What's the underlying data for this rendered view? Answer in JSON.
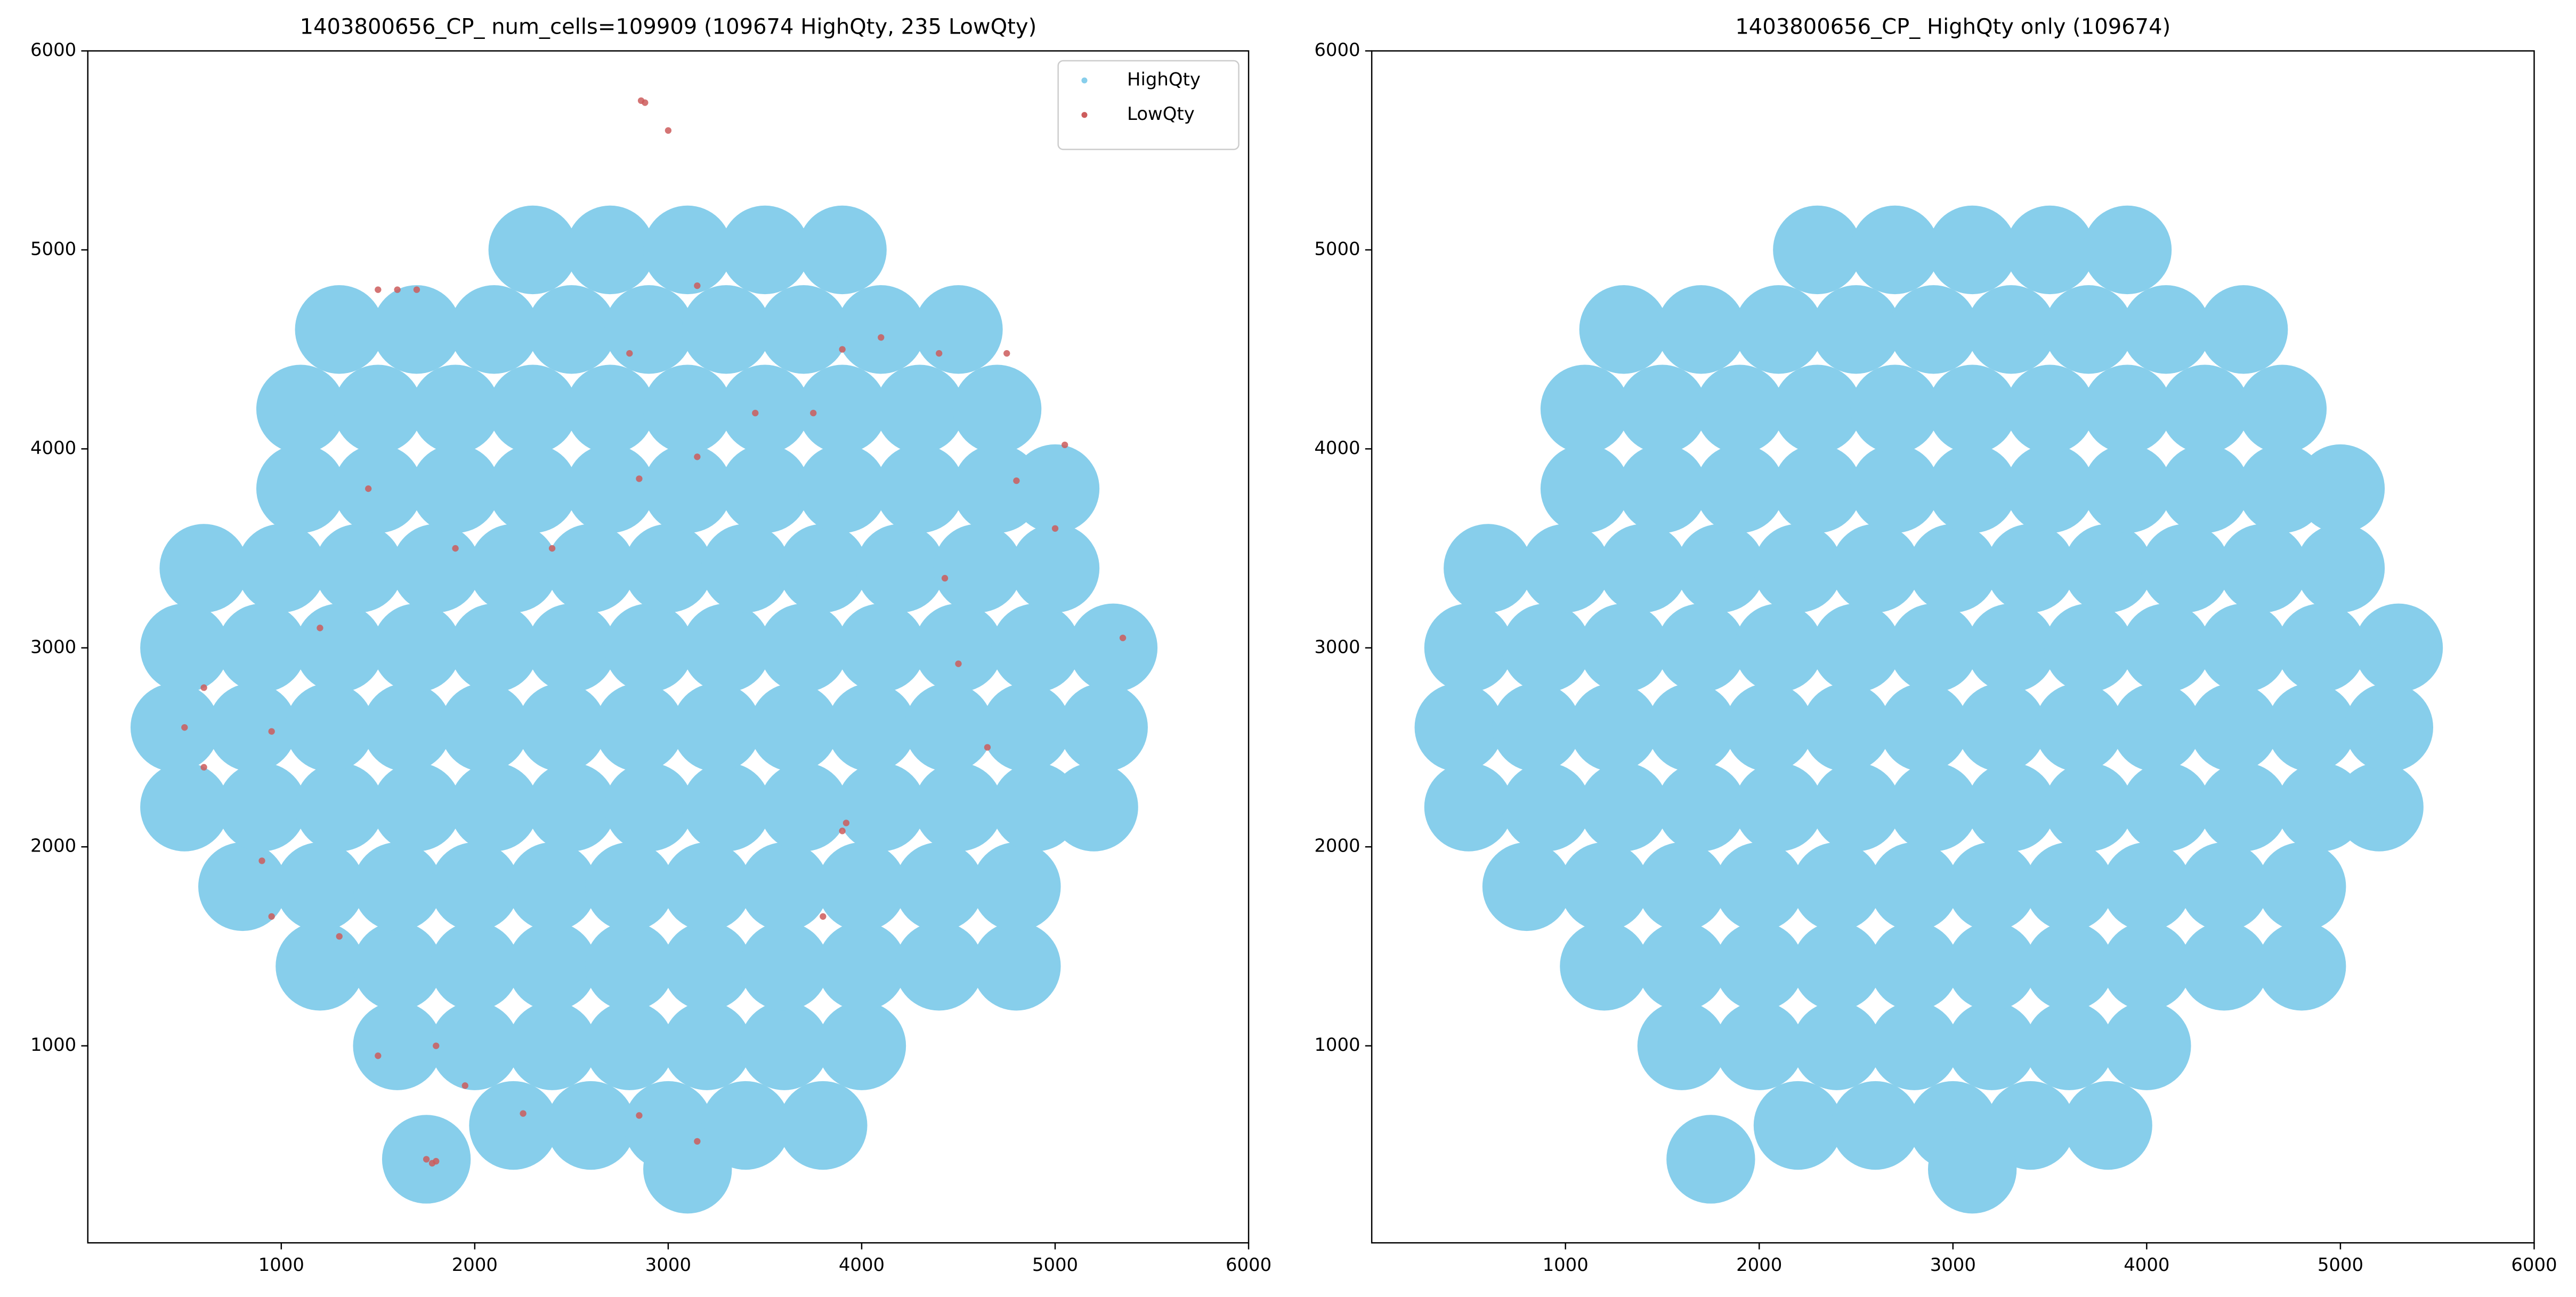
{
  "chart_data": [
    {
      "type": "scatter",
      "title": "1403800656_CP_ num_cells=109909 (109674 HighQty, 235 LowQty)",
      "xlim": [
        0,
        6000
      ],
      "ylim": [
        10,
        6000
      ],
      "xticks": [
        1000,
        2000,
        3000,
        4000,
        5000,
        6000
      ],
      "yticks": [
        1000,
        2000,
        3000,
        4000,
        5000,
        6000
      ],
      "legend": "upper right",
      "series": [
        {
          "name": "HighQty",
          "color": "#87ceeb",
          "x": [
            2200,
            2600,
            3000,
            3400,
            3800,
            1600,
            2000,
            2400,
            2800,
            3200,
            3600,
            4000,
            1200,
            1600,
            2000,
            2400,
            2800,
            3200,
            3600,
            4000,
            4400,
            4800,
            800,
            1200,
            1600,
            2000,
            2400,
            2800,
            3200,
            3600,
            4000,
            4400,
            4800,
            500,
            900,
            1300,
            1700,
            2100,
            2500,
            2900,
            3300,
            3700,
            4100,
            4500,
            4900,
            5200,
            450,
            850,
            1250,
            1650,
            2050,
            2450,
            2850,
            3250,
            3650,
            4050,
            4450,
            4850,
            5250,
            500,
            900,
            1300,
            1700,
            2100,
            2500,
            2900,
            3300,
            3700,
            4100,
            4500,
            4900,
            5300,
            600,
            1000,
            1400,
            1800,
            2200,
            2600,
            3000,
            3400,
            3800,
            4200,
            4600,
            5000,
            1100,
            1500,
            1900,
            2300,
            2700,
            3100,
            3500,
            3900,
            4300,
            4700,
            5000,
            1100,
            1500,
            1900,
            2300,
            2700,
            3100,
            3500,
            3900,
            4300,
            4700,
            1300,
            1700,
            2100,
            2500,
            2900,
            3300,
            3700,
            4100,
            4500,
            2300,
            2700,
            3100,
            3500,
            3900,
            1750,
            3100
          ],
          "values": [
            600,
            600,
            600,
            600,
            600,
            1000,
            1000,
            1000,
            1000,
            1000,
            1000,
            1000,
            1400,
            1400,
            1400,
            1400,
            1400,
            1400,
            1400,
            1400,
            1400,
            1400,
            1800,
            1800,
            1800,
            1800,
            1800,
            1800,
            1800,
            1800,
            1800,
            1800,
            1800,
            2200,
            2200,
            2200,
            2200,
            2200,
            2200,
            2200,
            2200,
            2200,
            2200,
            2200,
            2200,
            2200,
            2600,
            2600,
            2600,
            2600,
            2600,
            2600,
            2600,
            2600,
            2600,
            2600,
            2600,
            2600,
            2600,
            3000,
            3000,
            3000,
            3000,
            3000,
            3000,
            3000,
            3000,
            3000,
            3000,
            3000,
            3000,
            3000,
            3400,
            3400,
            3400,
            3400,
            3400,
            3400,
            3400,
            3400,
            3400,
            3400,
            3400,
            3400,
            3800,
            3800,
            3800,
            3800,
            3800,
            3800,
            3800,
            3800,
            3800,
            3800,
            3800,
            4200,
            4200,
            4200,
            4200,
            4200,
            4200,
            4200,
            4200,
            4200,
            4200,
            4600,
            4600,
            4600,
            4600,
            4600,
            4600,
            4600,
            4600,
            4600,
            5000,
            5000,
            5000,
            5000,
            5000,
            430,
            380
          ]
        },
        {
          "name": "LowQty",
          "color": "#cd5c5c",
          "x": [
            1750,
            1780,
            1800,
            3920,
            3900,
            2860,
            2880,
            3000,
            1500,
            1600,
            1700,
            2800,
            3150,
            3450,
            3750,
            3900,
            4100,
            4400,
            4750,
            5050,
            4800,
            5000,
            4430,
            5350,
            4500,
            2850,
            3150,
            2400,
            1900,
            1450,
            1200,
            950,
            600,
            500,
            600,
            900,
            950,
            1300,
            1500,
            1800,
            1950,
            2250,
            2850,
            3800,
            3150,
            4650
          ],
          "values": [
            430,
            410,
            420,
            2120,
            2080,
            5750,
            5740,
            5600,
            4800,
            4800,
            4800,
            4480,
            4820,
            4180,
            4180,
            4500,
            4560,
            4480,
            4480,
            4020,
            3840,
            3600,
            3350,
            3050,
            2920,
            3850,
            3960,
            3500,
            3500,
            3800,
            3100,
            2580,
            2800,
            2600,
            2400,
            1930,
            1650,
            1550,
            950,
            1000,
            800,
            660,
            650,
            1650,
            520,
            2500
          ]
        }
      ]
    },
    {
      "type": "scatter",
      "title": "1403800656_CP_ HighQty only (109674)",
      "xlim": [
        0,
        6000
      ],
      "ylim": [
        10,
        6000
      ],
      "xticks": [
        1000,
        2000,
        3000,
        4000,
        5000,
        6000
      ],
      "yticks": [
        1000,
        2000,
        3000,
        4000,
        5000,
        6000
      ],
      "series": [
        {
          "color": "#87ceeb",
          "x": [
            2200,
            2600,
            3000,
            3400,
            3800,
            1600,
            2000,
            2400,
            2800,
            3200,
            3600,
            4000,
            1200,
            1600,
            2000,
            2400,
            2800,
            3200,
            3600,
            4000,
            4400,
            4800,
            800,
            1200,
            1600,
            2000,
            2400,
            2800,
            3200,
            3600,
            4000,
            4400,
            4800,
            500,
            900,
            1300,
            1700,
            2100,
            2500,
            2900,
            3300,
            3700,
            4100,
            4500,
            4900,
            5200,
            450,
            850,
            1250,
            1650,
            2050,
            2450,
            2850,
            3250,
            3650,
            4050,
            4450,
            4850,
            5250,
            500,
            900,
            1300,
            1700,
            2100,
            2500,
            2900,
            3300,
            3700,
            4100,
            4500,
            4900,
            5300,
            600,
            1000,
            1400,
            1800,
            2200,
            2600,
            3000,
            3400,
            3800,
            4200,
            4600,
            5000,
            1100,
            1500,
            1900,
            2300,
            2700,
            3100,
            3500,
            3900,
            4300,
            4700,
            5000,
            1100,
            1500,
            1900,
            2300,
            2700,
            3100,
            3500,
            3900,
            4300,
            4700,
            1300,
            1700,
            2100,
            2500,
            2900,
            3300,
            3700,
            4100,
            4500,
            2300,
            2700,
            3100,
            3500,
            3900,
            1750,
            3100
          ],
          "values": [
            600,
            600,
            600,
            600,
            600,
            1000,
            1000,
            1000,
            1000,
            1000,
            1000,
            1000,
            1400,
            1400,
            1400,
            1400,
            1400,
            1400,
            1400,
            1400,
            1400,
            1400,
            1800,
            1800,
            1800,
            1800,
            1800,
            1800,
            1800,
            1800,
            1800,
            1800,
            1800,
            2200,
            2200,
            2200,
            2200,
            2200,
            2200,
            2200,
            2200,
            2200,
            2200,
            2200,
            2200,
            2200,
            2600,
            2600,
            2600,
            2600,
            2600,
            2600,
            2600,
            2600,
            2600,
            2600,
            2600,
            2600,
            2600,
            3000,
            3000,
            3000,
            3000,
            3000,
            3000,
            3000,
            3000,
            3000,
            3000,
            3000,
            3000,
            3000,
            3400,
            3400,
            3400,
            3400,
            3400,
            3400,
            3400,
            3400,
            3400,
            3400,
            3400,
            3400,
            3800,
            3800,
            3800,
            3800,
            3800,
            3800,
            3800,
            3800,
            3800,
            3800,
            3800,
            4200,
            4200,
            4200,
            4200,
            4200,
            4200,
            4200,
            4200,
            4200,
            4200,
            4600,
            4600,
            4600,
            4600,
            4600,
            4600,
            4600,
            4600,
            4600,
            5000,
            5000,
            5000,
            5000,
            5000,
            430,
            380
          ]
        }
      ]
    }
  ]
}
